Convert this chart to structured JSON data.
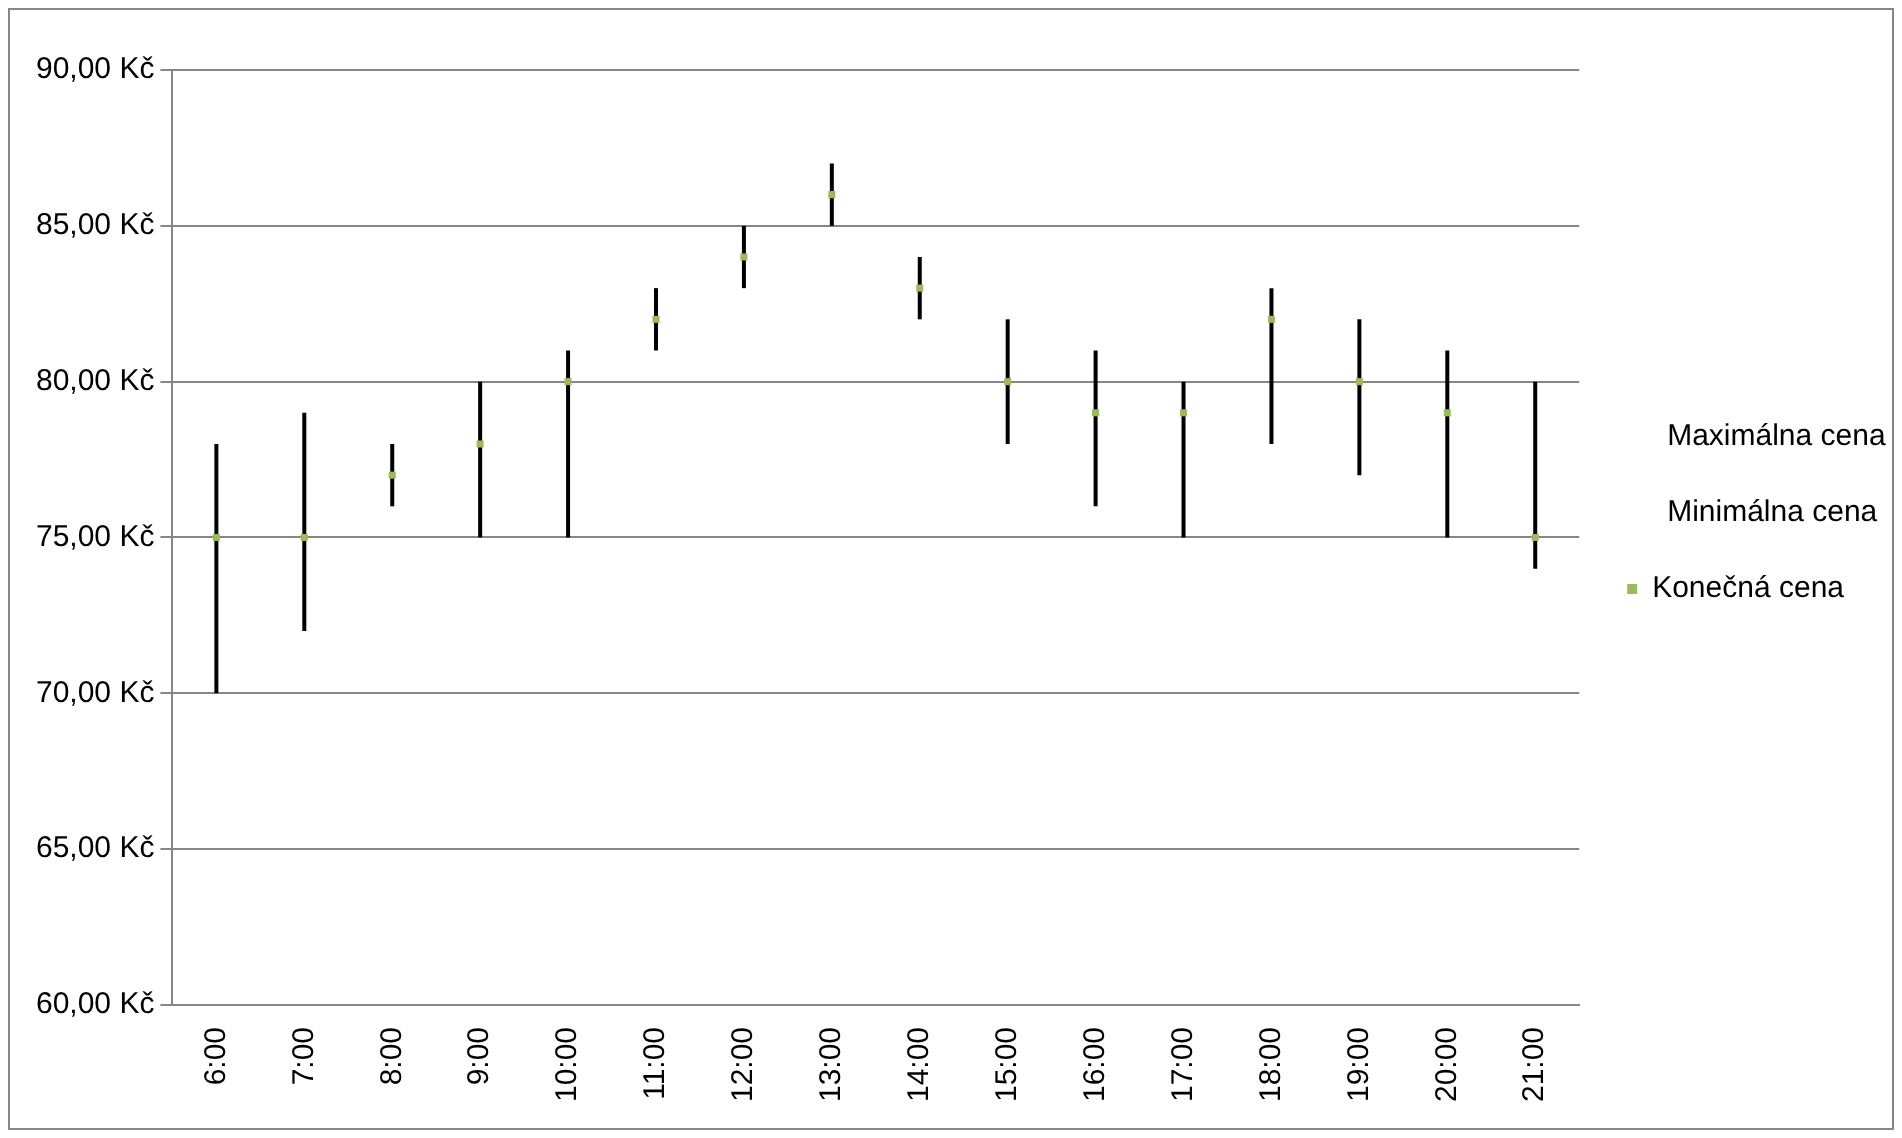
{
  "chart_data": {
    "type": "scatter",
    "categories": [
      "6:00",
      "7:00",
      "8:00",
      "9:00",
      "10:00",
      "11:00",
      "12:00",
      "13:00",
      "14:00",
      "15:00",
      "16:00",
      "17:00",
      "18:00",
      "19:00",
      "20:00",
      "21:00"
    ],
    "series": [
      {
        "name": "Konečná cena",
        "color": "#9bbb59",
        "marker": "square",
        "values": [
          75,
          75,
          77,
          78,
          80,
          82,
          84,
          86,
          83,
          80,
          79,
          79,
          82,
          80,
          79,
          75
        ],
        "errors": [
          [
            70,
            78
          ],
          [
            72,
            79
          ],
          [
            76,
            78
          ],
          [
            75,
            80
          ],
          [
            75,
            81
          ],
          [
            81,
            83
          ],
          [
            83,
            85
          ],
          [
            85,
            87
          ],
          [
            82,
            84
          ],
          [
            78,
            82
          ],
          [
            76,
            81
          ],
          [
            75,
            80
          ],
          [
            78,
            83
          ],
          [
            77,
            82
          ],
          [
            75,
            81
          ],
          [
            74,
            80
          ]
        ]
      }
    ],
    "annotations": [
      "Maximálna cena",
      "Minimálna cena"
    ],
    "ylim": [
      60,
      90
    ],
    "yticks": [
      {
        "value": 60,
        "label": "60,00 Kč"
      },
      {
        "value": 65,
        "label": "65,00 Kč"
      },
      {
        "value": 70,
        "label": "70,00 Kč"
      },
      {
        "value": 75,
        "label": "75,00 Kč"
      },
      {
        "value": 80,
        "label": "80,00 Kč"
      },
      {
        "value": 85,
        "label": "85,00 Kč"
      },
      {
        "value": 90,
        "label": "90,00 Kč"
      }
    ],
    "grid": "y",
    "legend": "right"
  }
}
